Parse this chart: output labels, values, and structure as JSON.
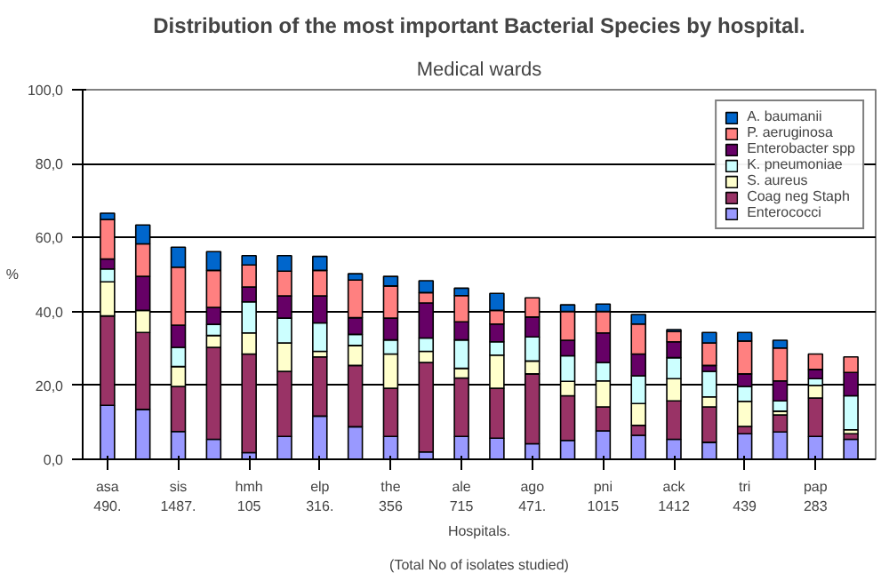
{
  "chart_data": {
    "type": "bar",
    "stacked": true,
    "title": "Distribution of the most important Bacterial Species by hospital.",
    "subtitle": "Medical wards",
    "xlabel": "Hospitals.",
    "ylabel": "%",
    "annotations": [
      "(Total No of isolates studied)"
    ],
    "categories": [
      "asa\n490.",
      null,
      "sis\n1487.",
      null,
      "hmh\n105",
      null,
      "elp\n316.",
      null,
      "the\n356",
      null,
      "ale\n715",
      null,
      "ago\n471.",
      null,
      "pni\n1015",
      null,
      "ack\n1412",
      null,
      "tri\n439",
      null,
      "pap\n283",
      null
    ],
    "series": [
      {
        "name": "Enterococci",
        "color": "#9999ff",
        "values": [
          14.6,
          13.5,
          7.5,
          5.4,
          1.8,
          6.2,
          11.7,
          8.8,
          6.2,
          2.0,
          6.2,
          5.7,
          4.2,
          5.1,
          7.7,
          6.5,
          5.4,
          4.6,
          6.9,
          7.4,
          6.2,
          5.4
        ]
      },
      {
        "name": "Coag neg Staph",
        "color": "#993366",
        "values": [
          24.2,
          20.8,
          12.2,
          24.9,
          26.7,
          17.6,
          16.0,
          16.6,
          13.0,
          24.2,
          15.8,
          13.5,
          18.9,
          12.1,
          6.5,
          2.7,
          10.4,
          9.6,
          2.0,
          4.6,
          10.4,
          1.5
        ]
      },
      {
        "name": "S. aureus",
        "color": "#ffffcc",
        "values": [
          9.2,
          6.0,
          5.4,
          3.2,
          5.7,
          7.7,
          1.5,
          5.4,
          9.3,
          3.0,
          2.6,
          9.0,
          3.5,
          3.9,
          7.0,
          5.9,
          6.0,
          2.7,
          6.8,
          1.0,
          3.4,
          1.1
        ]
      },
      {
        "name": "K. pneumoniae",
        "color": "#ccffff",
        "values": [
          3.5,
          null,
          5.2,
          3.0,
          8.4,
          6.7,
          7.7,
          3.0,
          3.8,
          3.6,
          7.7,
          3.6,
          6.5,
          6.9,
          5.0,
          7.5,
          5.7,
          6.9,
          4.0,
          2.8,
          1.8,
          9.2
        ]
      },
      {
        "name": "Enterobacter spp",
        "color": "#660066",
        "values": [
          2.7,
          9.2,
          6.0,
          4.6,
          4.0,
          6.0,
          7.3,
          4.5,
          5.9,
          9.5,
          4.9,
          4.8,
          5.4,
          4.2,
          8.0,
          5.9,
          4.3,
          1.6,
          3.4,
          5.4,
          2.5,
          6.3
        ]
      },
      {
        "name": "P. aeruginosa",
        "color": "#ff8080",
        "values": [
          10.7,
          8.8,
          15.7,
          10.0,
          6.0,
          6.7,
          6.9,
          10.2,
          8.7,
          2.8,
          7.1,
          3.7,
          5.2,
          7.8,
          5.8,
          8.1,
          2.8,
          6.1,
          8.9,
          8.9,
          4.2,
          4.2
        ]
      },
      {
        "name": "A. baumanii",
        "color": "#0066cc",
        "values": [
          1.7,
          5.1,
          5.4,
          5.1,
          2.5,
          4.2,
          3.8,
          1.7,
          2.6,
          3.2,
          2.0,
          4.6,
          null,
          1.8,
          2.0,
          2.6,
          0.5,
          2.8,
          2.3,
          2.1,
          null,
          null
        ]
      }
    ],
    "ylim": [
      0,
      100
    ],
    "yticks": [
      {
        "value": 0,
        "label": "0,0"
      },
      {
        "value": 20,
        "label": "20,0"
      },
      {
        "value": 40,
        "label": "40,0"
      },
      {
        "value": 60,
        "label": "60,0"
      },
      {
        "value": 80,
        "label": "80,0"
      },
      {
        "value": 100,
        "label": "100,0"
      }
    ],
    "grid": "y",
    "legend": "top right"
  }
}
